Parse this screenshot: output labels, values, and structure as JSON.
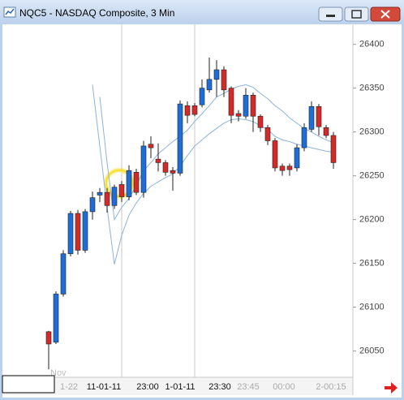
{
  "window": {
    "title": "NQC5 - NASDAQ Composite, 3 Min"
  },
  "chart_data": {
    "type": "candlestick",
    "up_color": "#1e6ed8",
    "down_color": "#d42a2a",
    "open": [
      26072,
      26060,
      26115,
      26161,
      26207,
      26165,
      26209,
      26228,
      26231,
      26216,
      26240,
      26226,
      26254,
      26231,
      26286,
      26269,
      26265,
      26256,
      26253,
      26330,
      26330,
      26331,
      26348,
      26360,
      26371,
      26350,
      26321,
      26318,
      26342,
      26318,
      26305,
      26290,
      26261,
      26261,
      26259,
      26282,
      26303,
      26329,
      26305,
      26296
    ],
    "high": [
      26073,
      26118,
      26165,
      26210,
      26211,
      26212,
      26232,
      26236,
      26236,
      26240,
      26244,
      26262,
      26258,
      26290,
      26295,
      26287,
      26268,
      26260,
      26336,
      26335,
      26333,
      26360,
      26385,
      26382,
      26375,
      26352,
      26325,
      26350,
      26345,
      26320,
      26308,
      26293,
      26264,
      26264,
      26286,
      26310,
      26335,
      26332,
      26308,
      26300
    ],
    "low": [
      26029,
      26058,
      26112,
      26158,
      26160,
      26162,
      26200,
      26220,
      26208,
      26212,
      26220,
      26222,
      26228,
      26225,
      26270,
      26255,
      26250,
      26233,
      26250,
      26310,
      26318,
      26328,
      26345,
      26340,
      26340,
      26310,
      26312,
      26315,
      26300,
      26300,
      26285,
      26255,
      26250,
      26250,
      26255,
      26278,
      26300,
      26296,
      26293,
      26258
    ],
    "close": [
      26058,
      26115,
      26161,
      26207,
      26165,
      26209,
      26225,
      26231,
      26216,
      26237,
      26226,
      26256,
      26231,
      26284,
      26282,
      26265,
      26254,
      26253,
      26332,
      26319,
      26320,
      26350,
      26360,
      26371,
      26348,
      26319,
      26318,
      26342,
      26318,
      26305,
      26290,
      26259,
      26256,
      26257,
      26282,
      26305,
      26329,
      26306,
      26296,
      26265
    ],
    "lines": [
      {
        "color": "#8db3da",
        "values": [
          null,
          null,
          null,
          null,
          null,
          null,
          null,
          26340,
          26265,
          26200,
          26214,
          26224,
          26239,
          26256,
          26265,
          26275,
          26282,
          26289,
          26295,
          26302,
          26312,
          26321,
          26330,
          26340,
          26344,
          26349,
          26352,
          26354,
          26351,
          26344,
          26338,
          26330,
          26324,
          26316,
          26310,
          26304,
          26300,
          26295,
          26291,
          26288
        ]
      },
      {
        "color": "#8db3da",
        "values": [
          null,
          null,
          null,
          null,
          null,
          null,
          26354,
          26284,
          26214,
          26149,
          26182,
          26205,
          26219,
          26230,
          26238,
          26243,
          26248,
          26252,
          26261,
          26273,
          26284,
          26291,
          26298,
          26304,
          26310,
          26314,
          26315,
          26314,
          26312,
          26307,
          26303,
          26295,
          26291,
          26289,
          26286,
          26284,
          26282,
          26280,
          26278,
          26277
        ]
      }
    ],
    "ylim": [
      26020,
      26421
    ],
    "yticks": [
      26050,
      26100,
      26150,
      26200,
      26250,
      26300,
      26350,
      26400
    ],
    "x_note": "Nov",
    "x_tick_labels": [
      "1-22",
      "11-01-11",
      "23:00",
      "1-01-11",
      "23:30",
      "23:45",
      "00:00",
      "2-00:15"
    ]
  }
}
